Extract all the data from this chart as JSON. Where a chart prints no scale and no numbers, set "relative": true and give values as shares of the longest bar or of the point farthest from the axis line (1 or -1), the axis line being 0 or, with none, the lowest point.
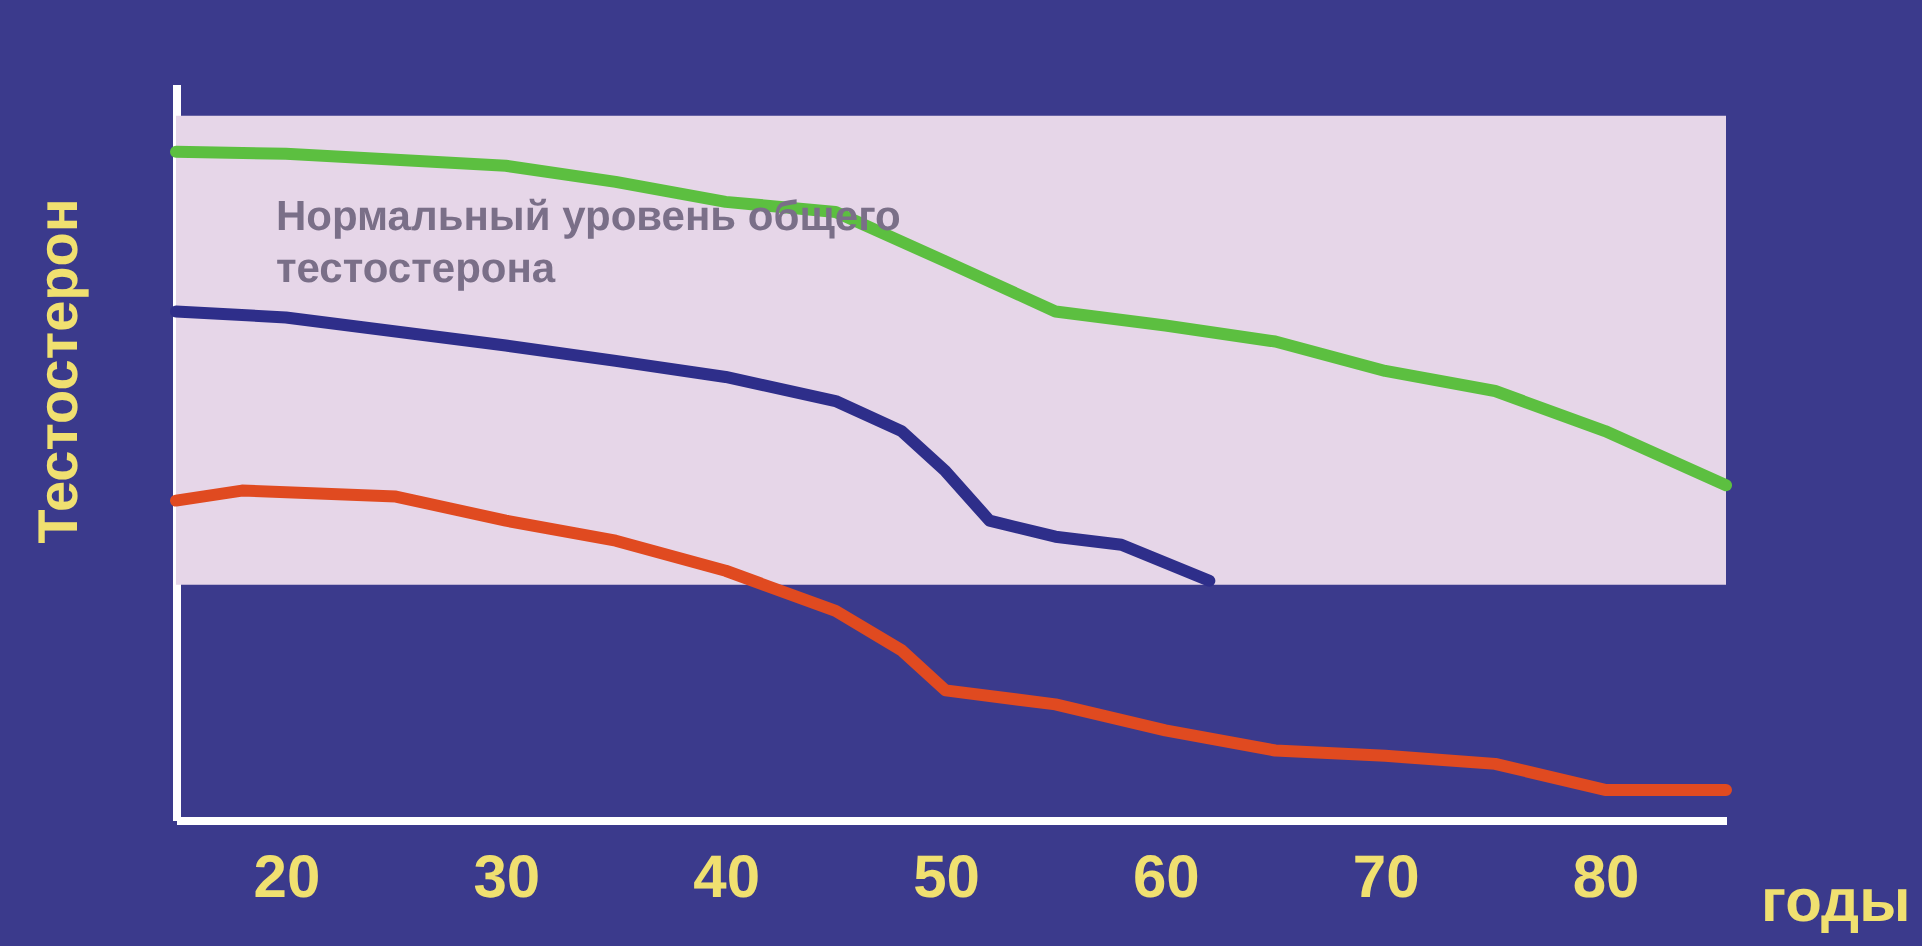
{
  "chart_data": {
    "type": "line",
    "relative": true,
    "xlabel": "годы",
    "ylabel": "Тестостерон",
    "xlim": [
      15,
      85.5
    ],
    "xticks": [
      20,
      30,
      40,
      50,
      60,
      70,
      80
    ],
    "grid": false,
    "marker": "none",
    "line_style": "solid",
    "bands": [
      {
        "axis": "y",
        "from": 0.352,
        "to": 1.054,
        "label": "Нормальный уровень общего тестостерона",
        "color": "#e6d6e8"
      }
    ],
    "series": [
      {
        "color": "#5cbf40",
        "x": [
          15,
          20,
          30,
          35,
          40,
          45,
          50,
          55,
          60,
          65,
          70,
          75,
          80,
          85.5
        ],
        "values": [
          1.0,
          0.997,
          0.979,
          0.955,
          0.925,
          0.91,
          0.836,
          0.761,
          0.74,
          0.716,
          0.672,
          0.642,
          0.582,
          0.501
        ]
      },
      {
        "color": "#2e2e8a",
        "x": [
          15,
          20,
          30,
          35,
          40,
          45,
          48,
          50,
          52,
          55,
          58,
          62
        ],
        "values": [
          0.761,
          0.752,
          0.71,
          0.687,
          0.663,
          0.627,
          0.582,
          0.522,
          0.448,
          0.424,
          0.412,
          0.358
        ]
      },
      {
        "color": "#e04a20",
        "x": [
          15,
          18,
          25,
          30,
          35,
          40,
          45,
          48,
          50,
          55,
          60,
          65,
          70,
          75,
          80,
          85.5
        ],
        "values": [
          0.478,
          0.493,
          0.484,
          0.448,
          0.418,
          0.373,
          0.313,
          0.254,
          0.194,
          0.173,
          0.134,
          0.104,
          0.096,
          0.084,
          0.045,
          0.045
        ]
      }
    ]
  }
}
